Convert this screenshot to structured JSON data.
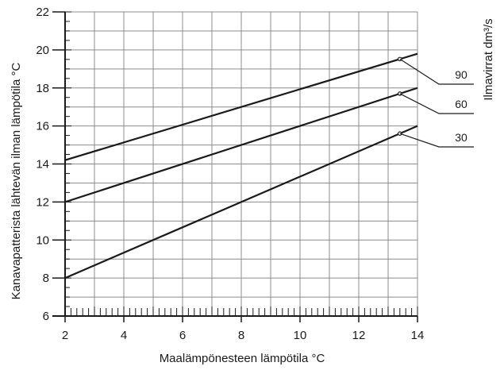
{
  "chart_data": {
    "type": "line",
    "title": "",
    "xlabel": "Maalämpönesteen lämpötila °C",
    "ylabel": "Kanavapatterista lähtevän ilman lämpötila °C",
    "legend_title": "Ilmavirrat dm³/s",
    "xlim": [
      2,
      14
    ],
    "ylim": [
      6,
      22
    ],
    "x_ticks": [
      2,
      4,
      6,
      8,
      10,
      12,
      14
    ],
    "y_ticks": [
      6,
      8,
      10,
      12,
      14,
      16,
      18,
      20,
      22
    ],
    "grid": true,
    "legend_placement": "right",
    "series": [
      {
        "name": "90",
        "x": [
          2,
          14
        ],
        "y": [
          14.2,
          19.8
        ]
      },
      {
        "name": "60",
        "x": [
          2,
          14
        ],
        "y": [
          12,
          18
        ]
      },
      {
        "name": "30",
        "x": [
          2,
          14
        ],
        "y": [
          8,
          16
        ]
      }
    ],
    "colors": {
      "line": "#1a1a1a",
      "grid": "#8c8c8c",
      "axis": "#1a1a1a"
    }
  }
}
